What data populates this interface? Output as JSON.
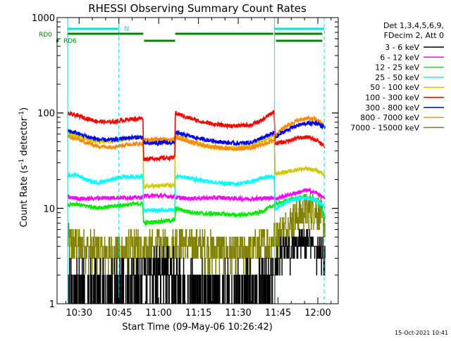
{
  "chart_data": {
    "type": "line",
    "title": "RHESSI Observing Summary Count Rates",
    "xlabel": "Start Time (09-May-06 10:26:42)",
    "ylabel": "Count Rate (s⁻¹ detector⁻¹)",
    "ylabel_parts": {
      "base": "Count Rate (s",
      "sup1": "-1",
      "mid": " detector",
      "sup2": "-1",
      "end": ")"
    },
    "yscale": "log",
    "ylim": [
      1,
      1000
    ],
    "xlim": [
      -5,
      101
    ],
    "x_unit": "minutes after 10:26:42",
    "y_ticks": [
      1,
      10,
      100,
      1000
    ],
    "y_tick_labels": [
      "1",
      "10",
      "100",
      "1000"
    ],
    "x_ticks": [
      3.3,
      18.3,
      33.3,
      48.3,
      63.3,
      78.3,
      93.3
    ],
    "x_tick_labels": [
      "10:30",
      "10:45",
      "11:00",
      "11:15",
      "11:30",
      "11:45",
      "12:00"
    ],
    "grid": false,
    "legend_placement": "right",
    "legend_header": [
      "Det 1,3,4,5,6,9,",
      "FDecim 2, Att 0"
    ],
    "footer_date": "15-Oct-2021 10:41",
    "night_boundaries": [
      -1.0,
      18.3,
      77.0,
      95.7
    ],
    "flags": [
      {
        "label": "N",
        "color": "#00e0e0",
        "segments": [
          [
            -1.0,
            18.3
          ],
          [
            77.0,
            95.7
          ]
        ]
      },
      {
        "label": "RD0",
        "color": "#008800",
        "segments": [
          [
            -1.0,
            27.5
          ],
          [
            39.5,
            76.5
          ],
          [
            77.0,
            95.0
          ]
        ]
      },
      {
        "label": "RD6",
        "color": "#008800",
        "segments": [
          [
            27.8,
            39.5
          ],
          [
            77.5,
            95.0
          ]
        ]
      }
    ],
    "x": [
      -1,
      2,
      6,
      10,
      14,
      18,
      22,
      27.4,
      27.6,
      33,
      39.4,
      39.6,
      44,
      50,
      56,
      62,
      68,
      72,
      76.8,
      77.2,
      81,
      85,
      89,
      93,
      96
    ],
    "series": [
      {
        "name": "3 - 6 keV",
        "color": "#000000",
        "style": "noisy",
        "values": [
          1.5,
          1.6,
          1.5,
          1.4,
          1.5,
          1.7,
          1.7,
          1.9,
          2.7,
          2.8,
          2.5,
          1.6,
          1.5,
          1.4,
          1.4,
          1.5,
          1.6,
          1.7,
          2.2,
          3.0,
          3.8,
          4.5,
          4.8,
          4.3,
          3.2
        ]
      },
      {
        "name": "6 - 12 keV",
        "color": "#ff00ff",
        "style": "band",
        "values": [
          13,
          12.8,
          12.6,
          12.8,
          12.9,
          13,
          13,
          13,
          13.5,
          13.6,
          13.3,
          13,
          12.7,
          12.8,
          13,
          12.7,
          12.6,
          12.7,
          13,
          12.5,
          13.5,
          14.5,
          15.5,
          14.5,
          12.5
        ]
      },
      {
        "name": "12 - 25 keV",
        "color": "#00ee00",
        "style": "band",
        "values": [
          10.8,
          11,
          10.6,
          10.2,
          10.3,
          10.7,
          11,
          11.2,
          7,
          7.3,
          7.5,
          10,
          9.3,
          8.8,
          8.8,
          8.5,
          8.7,
          9.2,
          10.8,
          11,
          12,
          12.8,
          13,
          12,
          8
        ]
      },
      {
        "name": "25 - 50 keV",
        "color": "#00ffff",
        "style": "band",
        "values": [
          22,
          22.5,
          20,
          18.5,
          19.5,
          21,
          21.5,
          21.5,
          9.5,
          9.5,
          9.7,
          22,
          21,
          19.5,
          18.5,
          18,
          19,
          20.5,
          22,
          9.8,
          11.5,
          12.5,
          13,
          12,
          10.5
        ]
      },
      {
        "name": "50 - 100 keV",
        "color": "#d4c800",
        "style": "band",
        "values": [
          60,
          58,
          54,
          50,
          50,
          52,
          54,
          54,
          17,
          17.2,
          17.5,
          58,
          52,
          46,
          43,
          43,
          45,
          50,
          58,
          23,
          24,
          25.5,
          26,
          25,
          22
        ]
      },
      {
        "name": "100 - 300 keV",
        "color": "#ff0000",
        "style": "band",
        "values": [
          98,
          95,
          88,
          82,
          80,
          82,
          86,
          88,
          33,
          33.5,
          34,
          100,
          90,
          80,
          75,
          73,
          75,
          83,
          103,
          48,
          50,
          54,
          56,
          52,
          44
        ]
      },
      {
        "name": "300 - 800 keV",
        "color": "#0000ff",
        "style": "band",
        "values": [
          65,
          62,
          57,
          53,
          52,
          53,
          55,
          56,
          48,
          48.5,
          49,
          62,
          58,
          53,
          50,
          48,
          49,
          54,
          62,
          55,
          65,
          73,
          78,
          78,
          70
        ]
      },
      {
        "name": "800 - 7000 keV",
        "color": "#ff8800",
        "style": "band",
        "values": [
          56,
          54,
          49,
          45,
          44,
          45,
          47,
          48,
          52,
          53,
          53,
          56,
          51,
          46,
          43,
          42,
          43,
          46,
          52,
          58,
          72,
          82,
          88,
          85,
          72
        ]
      },
      {
        "name": "7000 - 15000 keV",
        "color": "#808000",
        "style": "stepped",
        "values": [
          4.5,
          4.2,
          3.8,
          3.5,
          3.4,
          3.5,
          3.7,
          4.0,
          3.6,
          3.7,
          3.8,
          4.5,
          4.1,
          3.8,
          3.5,
          3.4,
          3.5,
          3.9,
          4.7,
          5.0,
          6.0,
          8.0,
          9.5,
          9.5,
          6.5
        ]
      }
    ]
  }
}
